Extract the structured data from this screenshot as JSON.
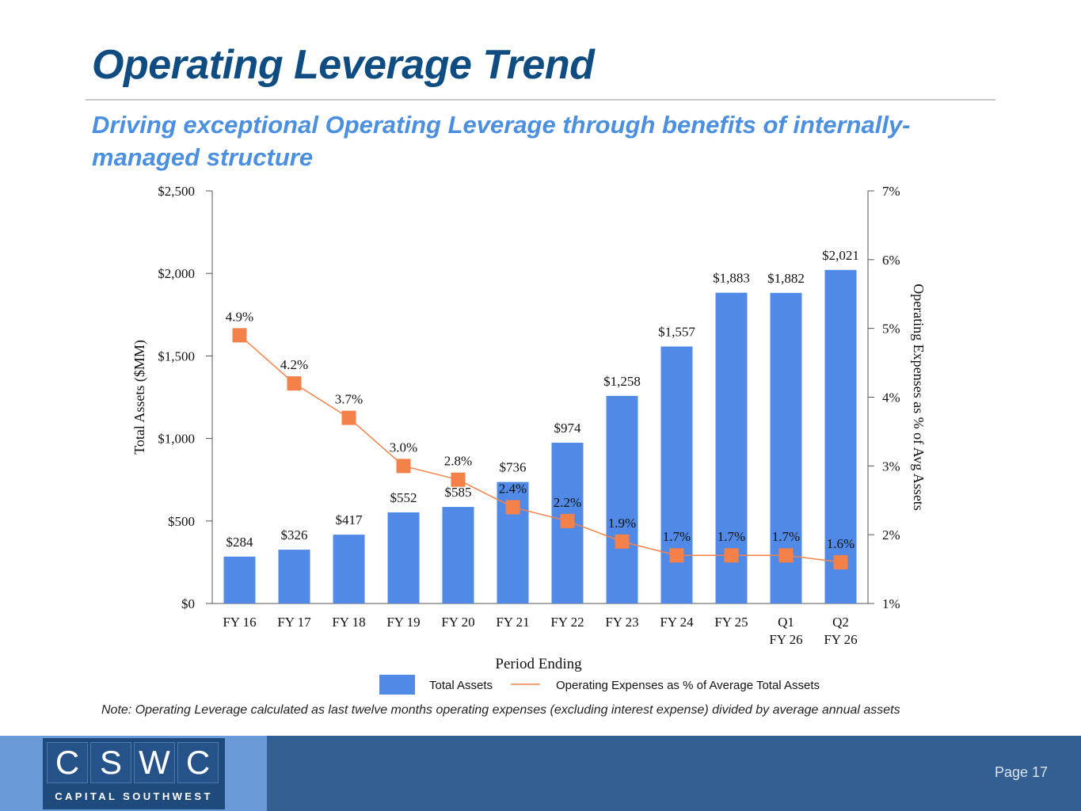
{
  "page": {
    "title": "Operating Leverage Trend",
    "subtitle": "Driving exceptional Operating Leverage through benefits of internally-managed structure",
    "note": "Note: Operating Leverage calculated as last twelve months operating expenses (excluding interest expense) divided by average annual assets",
    "page_number": "Page 17"
  },
  "logo": {
    "letters": [
      "C",
      "S",
      "W",
      "C"
    ],
    "subtitle": "CAPITAL SOUTHWEST"
  },
  "colors": {
    "bar": "#5089e6",
    "line": "#f4814a",
    "title": "#0f4c81",
    "subtitle": "#4a8fe0",
    "footer": "#345f92"
  },
  "chart_data": {
    "type": "bar",
    "categories": [
      "FY 16",
      "FY 17",
      "FY 18",
      "FY 19",
      "FY 20",
      "FY 21",
      "FY 22",
      "FY 23",
      "FY 24",
      "FY 25",
      "Q1\nFY 26",
      "Q2\nFY 26"
    ],
    "series": [
      {
        "name": "Total Assets",
        "type": "bar",
        "axis": "left",
        "values": [
          284,
          326,
          417,
          552,
          585,
          736,
          974,
          1258,
          1557,
          1883,
          1882,
          2021
        ],
        "labels": [
          "$284",
          "$326",
          "$417",
          "$552",
          "$585",
          "$736",
          "$974",
          "$1,258",
          "$1,557",
          "$1,883",
          "$1,882",
          "$2,021"
        ]
      },
      {
        "name": "Operating Expenses as % of Average Total Assets",
        "type": "line",
        "axis": "right",
        "values": [
          4.9,
          4.2,
          3.7,
          3.0,
          2.8,
          2.4,
          2.2,
          1.9,
          1.7,
          1.7,
          1.7,
          1.6
        ],
        "labels": [
          "4.9%",
          "4.2%",
          "3.7%",
          "3.0%",
          "2.8%",
          "2.4%",
          "2.2%",
          "1.9%",
          "1.7%",
          "1.7%",
          "1.7%",
          "1.6%"
        ]
      }
    ],
    "xlabel": "Period Ending",
    "ylabel": "Total Assets ($MM)",
    "y2label": "Operating Expenses as % of Avg Assets",
    "ylim": [
      0,
      2500
    ],
    "y2lim": [
      1,
      7
    ],
    "yticks": [
      0,
      500,
      1000,
      1500,
      2000,
      2500
    ],
    "ytick_labels": [
      "$0",
      "$500",
      "$1,000",
      "$1,500",
      "$2,000",
      "$2,500"
    ],
    "y2ticks": [
      1,
      2,
      3,
      4,
      5,
      6,
      7
    ],
    "y2tick_labels": [
      "1%",
      "2%",
      "3%",
      "4%",
      "5%",
      "6%",
      "7%"
    ],
    "legend": [
      "Total Assets",
      "Operating Expenses as % of Average Total Assets"
    ],
    "legend_position": "bottom",
    "grid": false
  }
}
